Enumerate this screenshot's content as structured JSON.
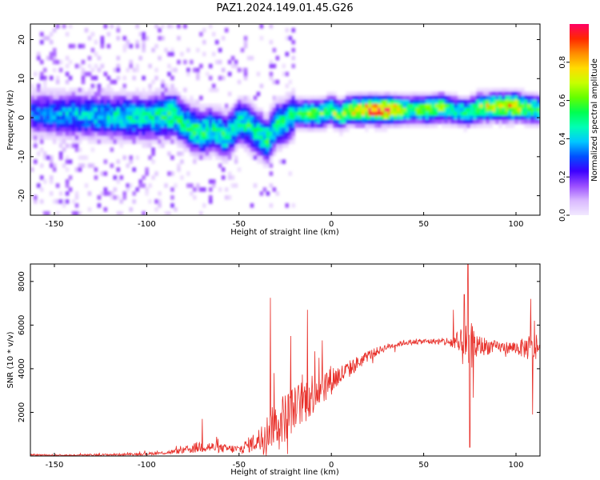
{
  "title": "PAZ1.2024.149.01.45.G26",
  "chart_data": [
    {
      "type": "heatmap",
      "xlabel": "Height of straight line (km)",
      "ylabel": "Frequency (Hz)",
      "xlim": [
        -163,
        113
      ],
      "ylim": [
        -25,
        24
      ],
      "x_ticks": [
        -150,
        -100,
        -50,
        0,
        50,
        100
      ],
      "y_ticks": [
        -20,
        -10,
        0,
        10,
        20
      ],
      "ridge": {
        "x": [
          -163,
          -150,
          -140,
          -130,
          -120,
          -110,
          -100,
          -90,
          -85,
          -80,
          -75,
          -70,
          -65,
          -60,
          -57,
          -55,
          -50,
          -45,
          -40,
          -35,
          -30,
          -25,
          -20,
          -15,
          -10,
          -5,
          0,
          5,
          10,
          20,
          30,
          40,
          50,
          60,
          65,
          70,
          75,
          80,
          90,
          100,
          105,
          113
        ],
        "center_f": [
          1,
          0.8,
          0.6,
          0.5,
          0.3,
          0.2,
          0,
          0.5,
          0.8,
          -1.5,
          -3,
          -4,
          -3,
          -4,
          -5,
          -4,
          -1,
          -2,
          -4,
          -6,
          -2,
          -1,
          1,
          1,
          1,
          1,
          2,
          0.5,
          2,
          2,
          2,
          2,
          2,
          2.5,
          2,
          1.5,
          1.5,
          2.5,
          2.8,
          2.8,
          2.5,
          2
        ],
        "amplitude": [
          0.3,
          0.35,
          0.38,
          0.4,
          0.42,
          0.45,
          0.45,
          0.5,
          0.55,
          0.45,
          0.55,
          0.5,
          0.45,
          0.5,
          0.45,
          0.45,
          0.45,
          0.5,
          0.45,
          0.5,
          0.5,
          0.45,
          0.5,
          0.55,
          0.6,
          0.55,
          0.65,
          0.6,
          0.7,
          0.85,
          0.95,
          0.55,
          0.6,
          0.6,
          0.45,
          0.5,
          0.5,
          0.65,
          0.7,
          0.8,
          0.6,
          0.55
        ]
      },
      "colorbar": {
        "label": "Normalized spectral amplitude",
        "ticks": [
          0.0,
          0.2,
          0.4,
          0.6,
          0.8
        ],
        "range": [
          0,
          1
        ],
        "colors": [
          "#f2e9ff",
          "#d9b8ff",
          "#9a4dff",
          "#3c00ff",
          "#0050ff",
          "#00c8ff",
          "#00ffb4",
          "#00ff50",
          "#64ff00",
          "#c8ff00",
          "#ffdc00",
          "#ff8c00",
          "#ff2800",
          "#ff0064"
        ]
      }
    },
    {
      "type": "line",
      "xlabel": "Height of straight line (km)",
      "ylabel": "SNR (10 * v/v)",
      "xlim": [
        -163,
        113
      ],
      "ylim": [
        0,
        8800
      ],
      "x_ticks": [
        -150,
        -100,
        -50,
        0,
        50,
        100
      ],
      "y_ticks": [
        2000,
        4000,
        6000,
        8000
      ],
      "color": "#e8302a",
      "envelope": {
        "x": [
          -163,
          -140,
          -120,
          -100,
          -90,
          -80,
          -70,
          -60,
          -50,
          -40,
          -35,
          -30,
          -25,
          -20,
          -15,
          -10,
          -5,
          0,
          5,
          10,
          20,
          30,
          40,
          50,
          60,
          65,
          70,
          75,
          80,
          90,
          100,
          105,
          110,
          113
        ],
        "base": [
          50,
          30,
          60,
          100,
          150,
          250,
          450,
          350,
          300,
          700,
          1100,
          1500,
          1800,
          2200,
          2500,
          2900,
          3200,
          3500,
          3700,
          4000,
          4600,
          5000,
          5200,
          5250,
          5250,
          5200,
          5000,
          5050,
          5050,
          5000,
          4950,
          4950,
          5000,
          4900
        ],
        "noise": [
          40,
          40,
          50,
          60,
          80,
          150,
          300,
          200,
          200,
          500,
          800,
          1000,
          1200,
          1000,
          1100,
          1000,
          800,
          700,
          500,
          400,
          250,
          150,
          120,
          120,
          150,
          300,
          800,
          1200,
          500,
          250,
          300,
          500,
          800,
          200
        ]
      },
      "spikes": [
        {
          "x": -70,
          "y": 1700
        },
        {
          "x": -33,
          "y": 7250
        },
        {
          "x": -31,
          "y": 3800
        },
        {
          "x": -30,
          "y": 1200
        },
        {
          "x": -22,
          "y": 5500
        },
        {
          "x": -13,
          "y": 6700
        },
        {
          "x": -9,
          "y": 4800
        },
        {
          "x": -5,
          "y": 5300
        },
        {
          "x": 72,
          "y": 7400
        },
        {
          "x": 74,
          "y": 8800
        },
        {
          "x": 75,
          "y": 400
        },
        {
          "x": 66,
          "y": 6700
        },
        {
          "x": 108,
          "y": 7200
        },
        {
          "x": 110,
          "y": 6200
        },
        {
          "x": 109,
          "y": 1900
        }
      ]
    }
  ]
}
